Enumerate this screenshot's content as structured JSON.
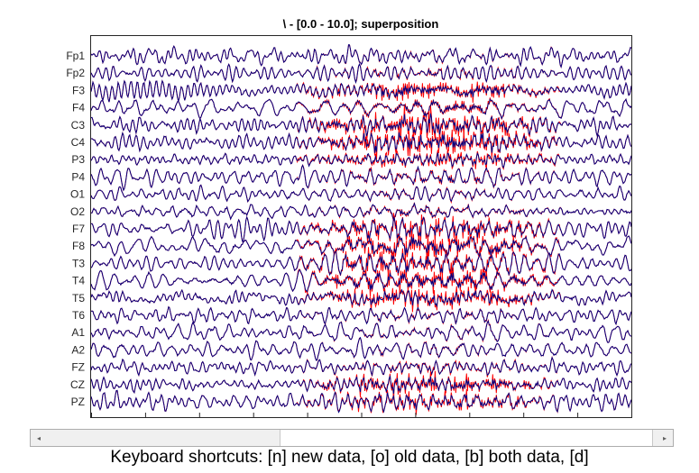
{
  "window": {
    "title": "\\ - [0.0 - 10.0]; superposition"
  },
  "chart_data": {
    "type": "line",
    "title": "\\ - [0.0 - 10.0]; superposition",
    "xlim": [
      0.0,
      10.0
    ],
    "x_ticks": [
      0,
      1,
      2,
      3,
      4,
      5,
      6,
      7,
      8,
      9,
      10
    ],
    "channels": [
      "Fp1",
      "Fp2",
      "F3",
      "F4",
      "C3",
      "C4",
      "P3",
      "P4",
      "O1",
      "O2",
      "F7",
      "F8",
      "T3",
      "T4",
      "T5",
      "T6",
      "A1",
      "A2",
      "FZ",
      "CZ",
      "PZ"
    ],
    "series": [
      {
        "role": "old data",
        "color": "#000080"
      },
      {
        "role": "new data",
        "color": "#ff0000"
      }
    ],
    "overlay_time_range": [
      3.8,
      8.7
    ],
    "overlay_strength": {
      "Fp1": 0.1,
      "Fp2": 0.2,
      "F3": 0.6,
      "F4": 0.4,
      "C3": 1.0,
      "C4": 0.9,
      "P3": 0.8,
      "P4": 0.3,
      "O1": 0.1,
      "O2": 0.2,
      "F7": 0.7,
      "F8": 0.8,
      "T3": 1.0,
      "T4": 0.9,
      "T5": 0.7,
      "T6": 0.2,
      "A1": 0.1,
      "A2": 0.1,
      "FZ": 0.2,
      "CZ": 0.6,
      "PZ": 0.5
    },
    "grid": false,
    "legend": "none"
  },
  "scrollbar": {
    "left_arrow": "◂",
    "right_arrow": "▸",
    "position": 0.41
  },
  "footer": {
    "shortcuts": "Keyboard shortcuts: [n] new data, [o] old data, [b] both data, [d]"
  }
}
